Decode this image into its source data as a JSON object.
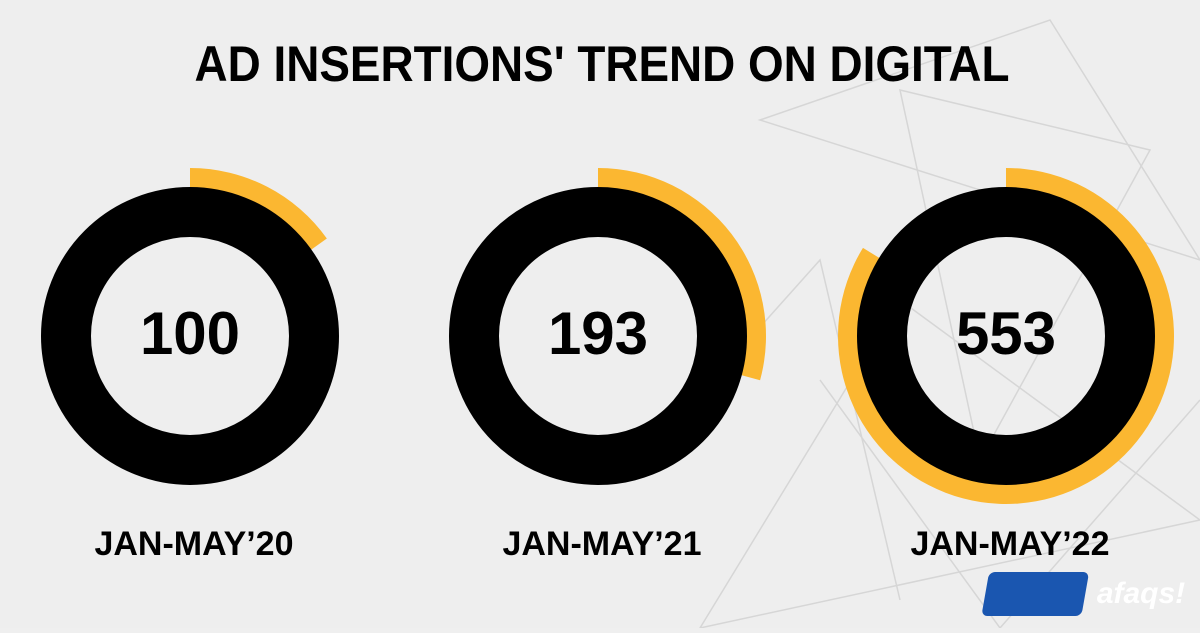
{
  "chart_data": {
    "type": "radial_bar",
    "title": "AD INSERTIONS' TREND ON DIGITAL",
    "categories": [
      "JAN-MAY’20",
      "JAN-MAY’21",
      "JAN-MAY’22"
    ],
    "values": [
      100,
      193,
      553
    ],
    "ylim": [
      0,
      660
    ],
    "color": "#fbb731",
    "track_color": "#000000"
  },
  "brand": "afaqs!"
}
